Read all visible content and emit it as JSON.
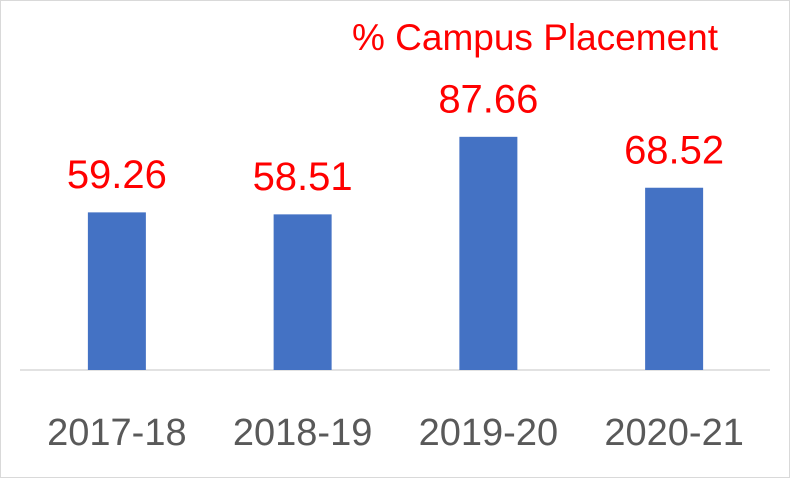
{
  "chart_data": {
    "type": "bar",
    "title": "% Campus Placement",
    "categories": [
      "2017-18",
      "2018-19",
      "2019-20",
      "2020-21"
    ],
    "values": [
      59.26,
      58.51,
      87.66,
      68.52
    ],
    "color": "#4472c4",
    "label_color": "#ff0000",
    "ylim": [
      0,
      100
    ],
    "grid": false
  }
}
